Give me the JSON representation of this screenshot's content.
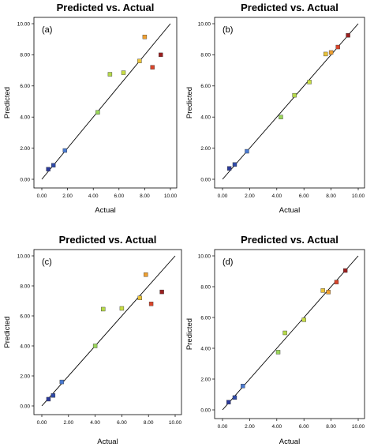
{
  "chart_data": [
    {
      "type": "scatter",
      "panel_label": "(a)",
      "title": "Predicted vs. Actual",
      "xlabel": "Actual",
      "ylabel": "Predicted",
      "xlim": [
        0,
        10
      ],
      "ylim": [
        0,
        10
      ],
      "xticks": [
        "0.00",
        "2.00",
        "4.00",
        "6.00",
        "8.00",
        "10.00"
      ],
      "yticks": [
        "0.00",
        "2.00",
        "4.00",
        "6.00",
        "8.00",
        "10.00"
      ],
      "reference_line": "y = x",
      "points": [
        {
          "x": 0.5,
          "y": 0.65,
          "color": "#2b3a9a"
        },
        {
          "x": 0.9,
          "y": 0.9,
          "color": "#2f4aa8"
        },
        {
          "x": 1.8,
          "y": 1.85,
          "color": "#4a7ad0"
        },
        {
          "x": 4.35,
          "y": 4.3,
          "color": "#9ad65a"
        },
        {
          "x": 5.3,
          "y": 6.75,
          "color": "#b5d94a"
        },
        {
          "x": 6.35,
          "y": 6.85,
          "color": "#c8dd45"
        },
        {
          "x": 7.6,
          "y": 7.6,
          "color": "#e8c23a"
        },
        {
          "x": 8.0,
          "y": 9.15,
          "color": "#f0a030"
        },
        {
          "x": 8.6,
          "y": 7.2,
          "color": "#d9452b"
        },
        {
          "x": 9.25,
          "y": 8.0,
          "color": "#9a1f1f"
        }
      ]
    },
    {
      "type": "scatter",
      "panel_label": "(b)",
      "title": "Predicted vs. Actual",
      "xlabel": "Actual",
      "ylabel": "Predicted",
      "xlim": [
        0,
        10
      ],
      "ylim": [
        0,
        10
      ],
      "xticks": [
        "0.00",
        "2.00",
        "4.00",
        "6.00",
        "8.00",
        "10.00"
      ],
      "yticks": [
        "0.00",
        "2.00",
        "4.00",
        "6.00",
        "8.00",
        "10.00"
      ],
      "reference_line": "y = x",
      "points": [
        {
          "x": 0.5,
          "y": 0.7,
          "color": "#2b3a9a"
        },
        {
          "x": 0.9,
          "y": 0.95,
          "color": "#2f4aa8"
        },
        {
          "x": 1.8,
          "y": 1.8,
          "color": "#4a7ad0"
        },
        {
          "x": 4.3,
          "y": 4.0,
          "color": "#9ad65a"
        },
        {
          "x": 5.3,
          "y": 5.4,
          "color": "#b5d94a"
        },
        {
          "x": 6.4,
          "y": 6.25,
          "color": "#c8dd45"
        },
        {
          "x": 7.6,
          "y": 8.05,
          "color": "#e8c23a"
        },
        {
          "x": 8.0,
          "y": 8.15,
          "color": "#f0a030"
        },
        {
          "x": 8.5,
          "y": 8.5,
          "color": "#d9452b"
        },
        {
          "x": 9.25,
          "y": 9.25,
          "color": "#9a1f1f"
        }
      ]
    },
    {
      "type": "scatter",
      "panel_label": "(c)",
      "title": "Predicted vs. Actual",
      "xlabel": "Actual",
      "ylabel": "Predicted",
      "xlim": [
        0,
        10
      ],
      "ylim": [
        0,
        10
      ],
      "xticks": [
        "0.00",
        "2.00",
        "4.00",
        "6.00",
        "8.00",
        "10.00"
      ],
      "yticks": [
        "0.00",
        "2.00",
        "4.00",
        "6.00",
        "8.00",
        "10.00"
      ],
      "reference_line": "y = x",
      "points": [
        {
          "x": 0.5,
          "y": 0.45,
          "color": "#2b3a9a"
        },
        {
          "x": 0.85,
          "y": 0.7,
          "color": "#2f4aa8"
        },
        {
          "x": 1.5,
          "y": 1.6,
          "color": "#4a7ad0"
        },
        {
          "x": 4.0,
          "y": 4.0,
          "color": "#9ad65a"
        },
        {
          "x": 4.6,
          "y": 6.45,
          "color": "#b5d94a"
        },
        {
          "x": 6.0,
          "y": 6.5,
          "color": "#c8dd45"
        },
        {
          "x": 7.35,
          "y": 7.2,
          "color": "#e8c23a"
        },
        {
          "x": 7.8,
          "y": 8.75,
          "color": "#f0a030"
        },
        {
          "x": 8.2,
          "y": 6.8,
          "color": "#d9452b"
        },
        {
          "x": 9.0,
          "y": 7.6,
          "color": "#9a1f1f"
        }
      ]
    },
    {
      "type": "scatter",
      "panel_label": "(d)",
      "title": "Predicted vs. Actual",
      "xlabel": "Actual",
      "ylabel": "Predicted",
      "xlim": [
        0,
        10
      ],
      "ylim": [
        0,
        10
      ],
      "xticks": [
        "0.00",
        "2.00",
        "4.00",
        "6.00",
        "8.00",
        "10.00"
      ],
      "yticks": [
        "0.00",
        "2.00",
        "4.00",
        "6.00",
        "8.00",
        "10.00"
      ],
      "reference_line": "y = x",
      "points": [
        {
          "x": 0.45,
          "y": 0.5,
          "color": "#2b3a9a"
        },
        {
          "x": 0.9,
          "y": 0.8,
          "color": "#2f4aa8"
        },
        {
          "x": 1.5,
          "y": 1.55,
          "color": "#4a7ad0"
        },
        {
          "x": 4.1,
          "y": 3.75,
          "color": "#9ad65a"
        },
        {
          "x": 4.6,
          "y": 5.0,
          "color": "#b5d94a"
        },
        {
          "x": 6.0,
          "y": 5.85,
          "color": "#c8dd45"
        },
        {
          "x": 7.4,
          "y": 7.75,
          "color": "#e8c23a"
        },
        {
          "x": 7.8,
          "y": 7.65,
          "color": "#f0a030"
        },
        {
          "x": 8.4,
          "y": 8.3,
          "color": "#d9452b"
        },
        {
          "x": 9.05,
          "y": 9.05,
          "color": "#9a1f1f"
        }
      ]
    }
  ]
}
